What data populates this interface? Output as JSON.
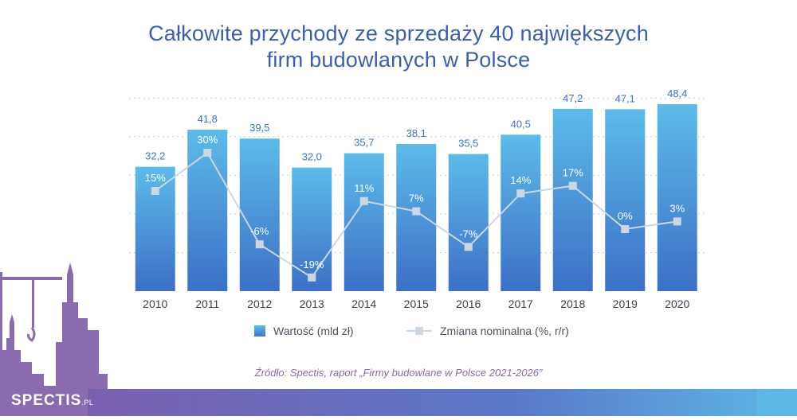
{
  "title_line1": "Całkowite przychody ze sprzedaży 40 największych",
  "title_line2": "firm budowlanych w Polsce",
  "legend": {
    "bars": "Wartość (mld zł)",
    "line": "Zmiana nominalna (%, r/r)"
  },
  "source": "Źródło: Spectis, raport „Firmy budowlane w Polsce 2021-2026”",
  "logo": {
    "name": "SPECTIS",
    "suffix": ".PL"
  },
  "colors": {
    "title": "#3d5fa8",
    "bar_top": "#5cbbe9",
    "bar_bottom": "#3d72c8",
    "line": "#cdd6e3",
    "label": "#4a5160",
    "source": "#8b6aa8",
    "silhouette": "#8a6bb0",
    "band_left": "#7b5fb0",
    "band_right": "#5cb8e6"
  },
  "chart_data": {
    "type": "bar",
    "categories": [
      "2010",
      "2011",
      "2012",
      "2013",
      "2014",
      "2015",
      "2016",
      "2017",
      "2018",
      "2019",
      "2020"
    ],
    "series": [
      {
        "name": "Wartość (mld zł)",
        "type": "bar",
        "values": [
          32.2,
          41.8,
          39.5,
          32.0,
          35.7,
          38.1,
          35.5,
          40.5,
          47.2,
          47.1,
          48.4
        ],
        "labels": [
          "32,2",
          "41,8",
          "39,5",
          "32,0",
          "35,7",
          "38,1",
          "35,5",
          "40,5",
          "47,2",
          "47,1",
          "48,4"
        ]
      },
      {
        "name": "Zmiana nominalna (%, r/r)",
        "type": "line",
        "values": [
          15,
          30,
          -6,
          -19,
          11,
          7,
          -7,
          14,
          17,
          0,
          3
        ],
        "labels": [
          "15%",
          "30%",
          "-6%",
          "-19%",
          "11%",
          "7%",
          "-7%",
          "14%",
          "17%",
          "0%",
          "3%"
        ]
      }
    ],
    "ylim_bars": [
      0,
      50
    ],
    "ylim_line": [
      -25,
      50
    ],
    "grid": true,
    "legend_position": "bottom"
  }
}
